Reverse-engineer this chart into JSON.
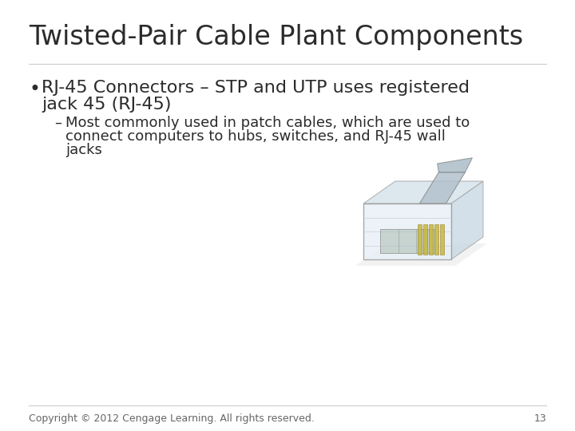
{
  "title": "Twisted-Pair Cable Plant Components",
  "bullet1_line1": "RJ-45 Connectors – STP and UTP uses registered",
  "bullet1_line2": "jack 45 (RJ-45)",
  "sub_dash": "–",
  "sub_line1": "Most commonly used in patch cables, which are used to",
  "sub_line2": "connect computers to hubs, switches, and RJ-45 wall",
  "sub_line3": "jacks",
  "footer": "Copyright © 2012 Cengage Learning. All rights reserved.",
  "page_number": "13",
  "bg_color": "#ffffff",
  "title_color": "#2b2b2b",
  "text_color": "#2b2b2b",
  "footer_color": "#666666",
  "title_fontsize": 24,
  "bullet_fontsize": 16,
  "sub_bullet_fontsize": 13,
  "footer_fontsize": 9,
  "line_color": "#cccccc"
}
